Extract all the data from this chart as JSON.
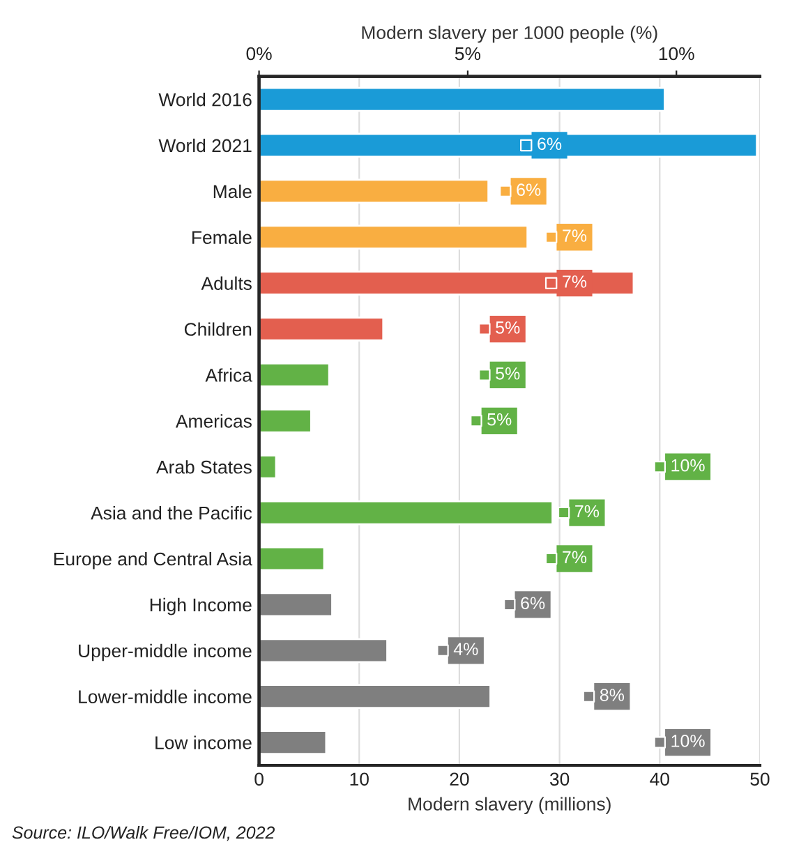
{
  "chart_data": {
    "type": "bar",
    "orientation": "horizontal",
    "categories": [
      "World 2016",
      "World 2021",
      "Male",
      "Female",
      "Adults",
      "Children",
      "Africa",
      "Americas",
      "Arab States",
      "Asia and the Pacific",
      "Europe and Central Asia",
      "High Income",
      "Upper-middle income",
      "Lower-middle income",
      "Low income"
    ],
    "series": [
      {
        "colors": [
          "#1a9bd7",
          "#1a9bd7",
          "#f9ae41",
          "#f9ae41",
          "#e35f4f",
          "#e35f4f",
          "#62b246",
          "#62b246",
          "#62b246",
          "#62b246",
          "#62b246",
          "#7f7f7f",
          "#7f7f7f",
          "#7f7f7f",
          "#7f7f7f"
        ],
        "values": [
          40.5,
          49.7,
          22.9,
          26.8,
          37.4,
          12.4,
          7.0,
          5.2,
          1.7,
          29.3,
          6.5,
          7.3,
          12.8,
          23.1,
          6.7
        ]
      },
      {
        "type": "scatter",
        "axis": "x2",
        "marker": "square",
        "colors": [
          "#1a9bd7",
          "#1a9bd7",
          "#f9ae41",
          "#f9ae41",
          "#e35f4f",
          "#e35f4f",
          "#62b246",
          "#62b246",
          "#62b246",
          "#62b246",
          "#62b246",
          "#7f7f7f",
          "#7f7f7f",
          "#7f7f7f",
          "#7f7f7f"
        ],
        "values": [
          null,
          6.4,
          5.9,
          7.0,
          7.0,
          5.4,
          5.4,
          5.2,
          9.6,
          7.3,
          7.0,
          6.0,
          4.4,
          7.9,
          9.6
        ],
        "value_labels": [
          null,
          "6%",
          "6%",
          "7%",
          "7%",
          "5%",
          "5%",
          "5%",
          "10%",
          "7%",
          "7%",
          "6%",
          "4%",
          "8%",
          "10%"
        ]
      }
    ],
    "xlabel": "Modern slavery (millions)",
    "xlim": [
      0,
      50
    ],
    "xticks": [
      0,
      10,
      20,
      30,
      40,
      50
    ],
    "x2label": "Modern slavery per 1000 people (%)",
    "x2lim": [
      0,
      12
    ],
    "x2ticks": [
      {
        "value": 0,
        "label": "0%"
      },
      {
        "value": 5,
        "label": "5%"
      },
      {
        "value": 10,
        "label": "10%"
      }
    ],
    "grid": "x",
    "annotations": [
      "Source: ILO/Walk Free/IOM, 2022"
    ]
  }
}
